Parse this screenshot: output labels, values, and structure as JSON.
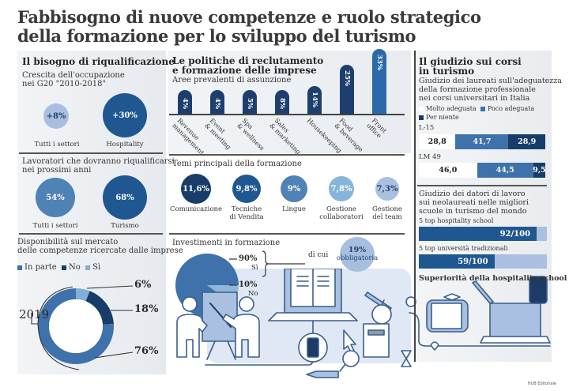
{
  "title": {
    "line1": "Fabbisogno di nuove competenze e ruolo strategico",
    "line2": "della formazione per lo sviluppo del turismo"
  },
  "left": {
    "heading": "Il bisogno di riqualificazione",
    "growth": {
      "subtitle_l1": "Crescita dell'occupazione",
      "subtitle_l2": "nei G20 \"2010-2018\"",
      "items": [
        {
          "value": "+8%",
          "label": "Tutti i settori"
        },
        {
          "value": "+30%",
          "label": "Hospitality"
        }
      ]
    },
    "reskill": {
      "subtitle_l1": "Lavoratori che dovranno riqualificarsi",
      "subtitle_l2": "nei prossimi anni",
      "items": [
        {
          "value": "54%",
          "label": "Tutti i settori"
        },
        {
          "value": "68%",
          "label": "Turismo"
        }
      ]
    },
    "availability": {
      "subtitle_l1": "Disponibilità sul mercato",
      "subtitle_l2": "delle competenze ricercate dalle imprese",
      "legend": [
        "In parte",
        "No",
        "Sì"
      ],
      "year": "2019",
      "labels": [
        "76%",
        "18%",
        "6%"
      ]
    }
  },
  "middle": {
    "heading_l1": "Le politiche di reclutamento",
    "heading_l2": "e formazione delle imprese",
    "hiring_subtitle": "Aree prevalenti di assunzione",
    "training_subtitle": "Temi principali della formazione",
    "training": [
      {
        "value": "11,6%",
        "label_l1": "Comunicazione",
        "label_l2": ""
      },
      {
        "value": "9,8%",
        "label_l1": "Tecniche",
        "label_l2": "di Vendita"
      },
      {
        "value": "9%",
        "label_l1": "Lingue",
        "label_l2": ""
      },
      {
        "value": "7,8%",
        "label_l1": "Gestione",
        "label_l2": "collaboratori"
      },
      {
        "value": "7,3%",
        "label_l1": "Gestione",
        "label_l2": "del team"
      }
    ],
    "investment": {
      "subtitle": "Investimenti in formazione",
      "yes_value": "90%",
      "yes_label": "Sì",
      "no_value": "10%",
      "no_label": "No",
      "of_which": "di cui",
      "mandatory_value": "19%",
      "mandatory_label": "obbligatoria"
    }
  },
  "right": {
    "heading_l1": "Il giudizio sui corsi",
    "heading_l2": "in turismo",
    "graduates": {
      "subtitle_l1": "Giudizio dei laureati sull'adeguatezza",
      "subtitle_l2": "della formazione professionale",
      "subtitle_l3": "nei corsi universitari in Italia",
      "legend": [
        "Molto adeguata",
        "Poco adeguata",
        "Per niente"
      ]
    },
    "employers": {
      "subtitle_l1": "Giudizio dei datori di lavoro",
      "subtitle_l2": "sui neolaureati nelle migliori",
      "subtitle_l3": "scuole in turismo del mondo",
      "conclusion": "Superiorità della hospitality school"
    }
  },
  "credit": "HUB Editoriale",
  "colors": {
    "dark_navy": "#1e3a66",
    "mid_blue": "#2f65a0",
    "steel_blue": "#3f74ad",
    "light_blue": "#8fb6d8",
    "pale_blue": "#aac3e3",
    "panel_bg": "#eceff2"
  },
  "chart_data": [
    {
      "type": "bar",
      "title": "Aree prevalenti di assunzione",
      "categories": [
        "Revenue management",
        "Event & meeting",
        "Spa & wellness",
        "Sales & marketing",
        "Housekeeping",
        "Food & beverage",
        "Front office"
      ],
      "values": [
        4,
        4,
        5,
        8,
        14,
        25,
        33
      ],
      "unit": "%",
      "value_labels": [
        "4%",
        "4%",
        "5%",
        "8%",
        "14%",
        "25%",
        "33%"
      ]
    },
    {
      "type": "pie",
      "title": "Disponibilità sul mercato delle competenze ricercate dalle imprese (2019)",
      "categories": [
        "In parte",
        "No",
        "Sì"
      ],
      "values": [
        76,
        18,
        6
      ],
      "unit": "%",
      "donut": true
    },
    {
      "type": "pie",
      "title": "Investimenti in formazione",
      "categories": [
        "Sì",
        "No"
      ],
      "values": [
        90,
        10
      ],
      "unit": "%"
    },
    {
      "type": "bar",
      "stacked": true,
      "title": "Giudizio dei laureati sull'adeguatezza della formazione professionale",
      "categories": [
        "L-15",
        "LM 49"
      ],
      "series": [
        {
          "name": "Molto adeguata",
          "values": [
            28.8,
            46.0
          ],
          "labels": [
            "28,8",
            "46,0"
          ]
        },
        {
          "name": "Poco adeguata",
          "values": [
            41.7,
            44.5
          ],
          "labels": [
            "41,7",
            "44,5"
          ]
        },
        {
          "name": "Per niente",
          "values": [
            28.9,
            9.5
          ],
          "labels": [
            "28,9",
            "9,5"
          ]
        }
      ]
    },
    {
      "type": "bar",
      "title": "Giudizio dei datori di lavoro sui neolaureati",
      "categories": [
        "5 top hospitality school",
        "5 top università tradizionali"
      ],
      "values": [
        92,
        59
      ],
      "max": 100,
      "value_labels": [
        "92/100",
        "59/100"
      ]
    }
  ]
}
